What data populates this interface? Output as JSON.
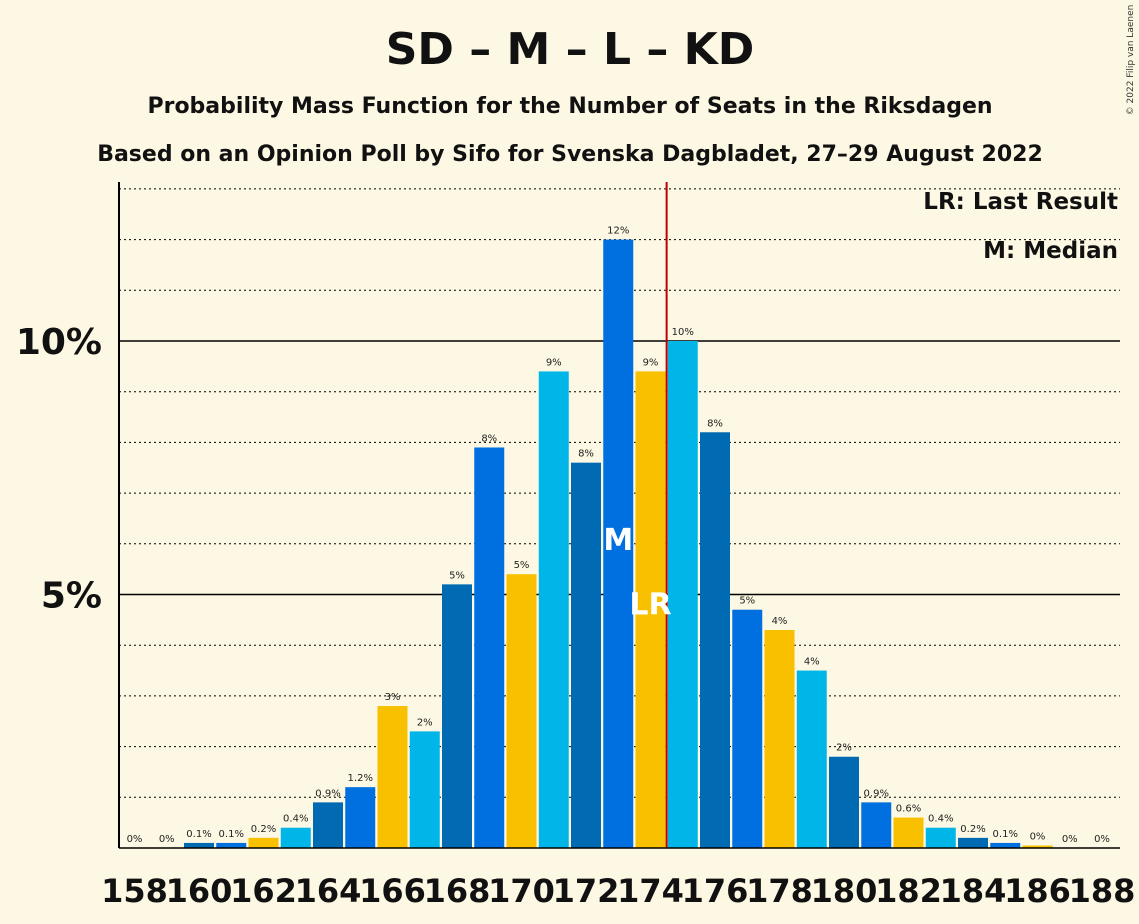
{
  "chart_data": {
    "type": "bar",
    "title": "SD – M – L – KD",
    "subtitle": "Probability Mass Function for the Number of Seats in the Riksdagen",
    "subtitle2": "Based on an Opinion Poll by Sifo for Svenska Dagbladet, 27–29 August 2022",
    "copyright": "© 2022 Filip van Laenen",
    "legend": [
      "LR: Last Result",
      "M: Median"
    ],
    "legend_position": "top-right",
    "xlabel": "",
    "ylabel": "",
    "x_tick_labels": [
      "158",
      "160",
      "162",
      "164",
      "166",
      "168",
      "170",
      "172",
      "174",
      "176",
      "178",
      "180",
      "182",
      "184",
      "186",
      "188"
    ],
    "y_ticks": [
      {
        "value": 5,
        "label": "5%"
      },
      {
        "value": 10,
        "label": "10%"
      }
    ],
    "ylim": [
      0,
      13
    ],
    "majority_line": 174.5,
    "median_seat": 173,
    "median_marker": "M",
    "last_result_seat": 174,
    "last_result_marker": "LR",
    "grid": "dotted every 1%, solid at 5% and 10%",
    "colors": [
      "#f9c000",
      "#00b5e8",
      "#006bb3",
      "#0070e0"
    ],
    "categories": [
      158,
      159,
      160,
      161,
      162,
      163,
      164,
      165,
      166,
      167,
      168,
      169,
      170,
      171,
      172,
      173,
      174,
      175,
      176,
      177,
      178,
      179,
      180,
      181,
      182,
      183,
      184,
      185,
      186,
      187,
      188
    ],
    "values": [
      0,
      0,
      0.1,
      0.1,
      0.2,
      0.4,
      0.9,
      1.2,
      2.8,
      2.3,
      5.2,
      7.9,
      5.4,
      9.4,
      7.6,
      12.0,
      9.4,
      10.0,
      8.2,
      4.7,
      4.3,
      3.5,
      1.8,
      0.9,
      0.6,
      0.4,
      0.2,
      0.1,
      0.05,
      0,
      0
    ],
    "data_labels": [
      "0%",
      "0%",
      "0.1%",
      "0.1%",
      "0.2%",
      "0.4%",
      "0.9%",
      "1.2%",
      "3%",
      "2%",
      "5%",
      "8%",
      "5%",
      "9%",
      "8%",
      "12%",
      "9%",
      "10%",
      "8%",
      "5%",
      "4%",
      "4%",
      "2%",
      "0.9%",
      "0.6%",
      "0.4%",
      "0.2%",
      "0.1%",
      "0%",
      "0%",
      "0%"
    ]
  }
}
